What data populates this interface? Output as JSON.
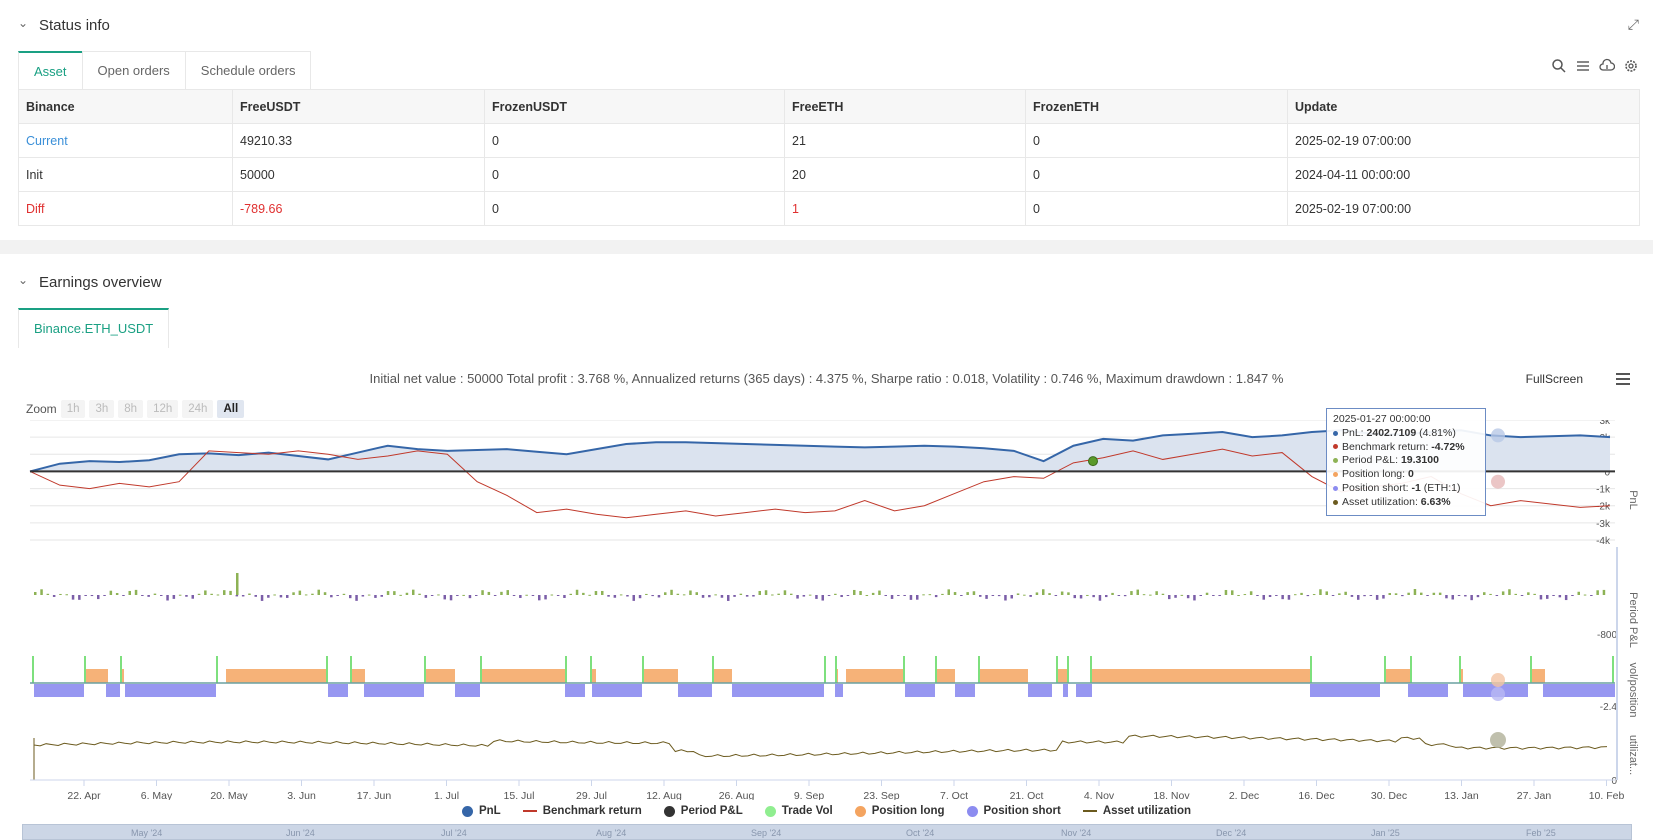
{
  "status_section": {
    "title": "Status info"
  },
  "tabs": [
    {
      "label": "Asset"
    },
    {
      "label": "Open orders"
    },
    {
      "label": "Schedule orders"
    }
  ],
  "table": {
    "headers": [
      "Binance",
      "FreeUSDT",
      "FrozenUSDT",
      "FreeETH",
      "FrozenETH",
      "Update"
    ],
    "rows": [
      [
        "Current",
        "49210.33",
        "0",
        "21",
        "0",
        "2025-02-19 07:00:00"
      ],
      [
        "Init",
        "50000",
        "0",
        "20",
        "0",
        "2024-04-11 00:00:00"
      ],
      [
        "Diff",
        "-789.66",
        "0",
        "1",
        "0",
        "2025-02-19 07:00:00"
      ]
    ]
  },
  "earnings_section": {
    "title": "Earnings overview",
    "tab": "Binance.ETH_USDT"
  },
  "summary": "Initial net value : 50000 Total profit : 3.768 %, Annualized returns (365 days) : 4.375 %, Sharpe ratio : 0.018, Volatility : 0.746 %, Maximum drawdown : 1.847 %",
  "fullscreen_label": "FullScreen",
  "zoom": {
    "label": "Zoom",
    "buttons": [
      "1h",
      "3h",
      "8h",
      "12h",
      "24h",
      "All"
    ],
    "active": "All"
  },
  "tooltip": {
    "date": "2025-01-27 00:00:00",
    "lines": [
      {
        "label": "PnL: ",
        "value": "2402.7109",
        "extra": " (4.81%)",
        "color": "#3566a8"
      },
      {
        "label": "Benchmark return: ",
        "value": "-4.72%",
        "extra": "",
        "color": "#c0392b"
      },
      {
        "label": "Period P&L: ",
        "value": "19.3100",
        "extra": "",
        "color": "#8db255"
      },
      {
        "label": "Position long: ",
        "value": "0",
        "extra": "",
        "color": "#f4a460"
      },
      {
        "label": "Position short: ",
        "value": "-1",
        "extra": " (ETH:1)",
        "color": "#8c8cf0"
      },
      {
        "label": "Asset utilization: ",
        "value": "6.63%",
        "extra": "",
        "color": "#6b5a1e"
      }
    ]
  },
  "legend": [
    {
      "label": "PnL",
      "color": "#3566a8",
      "kind": "dot"
    },
    {
      "label": "Benchmark return",
      "color": "#c0392b",
      "kind": "line"
    },
    {
      "label": "Period P&L",
      "color": "#333333",
      "kind": "dot"
    },
    {
      "label": "Trade Vol",
      "color": "#90ee90",
      "kind": "dot"
    },
    {
      "label": "Position long",
      "color": "#f4a460",
      "kind": "dot"
    },
    {
      "label": "Position short",
      "color": "#8c8cf0",
      "kind": "dot"
    },
    {
      "label": "Asset utilization",
      "color": "#6b5a1e",
      "kind": "line"
    }
  ],
  "chart_data": {
    "type": "line",
    "x_ticks": [
      "22. Apr",
      "6. May",
      "20. May",
      "3. Jun",
      "17. Jun",
      "1. Jul",
      "15. Jul",
      "29. Jul",
      "12. Aug",
      "26. Aug",
      "9. Sep",
      "23. Sep",
      "7. Oct",
      "21. Oct",
      "4. Nov",
      "18. Nov",
      "2. Dec",
      "16. Dec",
      "30. Dec",
      "13. Jan",
      "27. Jan",
      "10. Feb"
    ],
    "pnl_y_ticks": [
      "3k",
      "2k",
      "1k",
      "0",
      "-1k",
      "-2k",
      "-3k",
      "-4k"
    ],
    "pnl_ylim": [
      -4000,
      3000
    ],
    "period_pl_tick": "-800",
    "position_tick": "-2.4",
    "util_tick": "0",
    "axis_titles": [
      "PnL",
      "Period P&L",
      "vol/position",
      "utilizat..."
    ],
    "navigator_labels": [
      "May '24",
      "Jun '24",
      "Jul '24",
      "Aug '24",
      "Sep '24",
      "Oct '24",
      "Nov '24",
      "Dec '24",
      "Jan '25",
      "Feb '25"
    ],
    "series": [
      {
        "name": "PnL",
        "values": [
          0,
          450,
          600,
          550,
          650,
          1000,
          1050,
          950,
          1100,
          900,
          700,
          1100,
          1500,
          1300,
          1200,
          1250,
          1300,
          1150,
          1000,
          1300,
          1600,
          1700,
          1700,
          1650,
          1600,
          1550,
          1500,
          1450,
          1400,
          1450,
          1500,
          1450,
          1350,
          1200,
          600,
          1500,
          1900,
          1800,
          2100,
          2200,
          2300,
          2000,
          2100,
          2300,
          2400,
          2200,
          2150,
          2300,
          2400,
          2100,
          2000,
          2050,
          2100,
          2000
        ]
      },
      {
        "name": "Benchmark return",
        "values": [
          0,
          -800,
          -1000,
          -700,
          -900,
          -600,
          1200,
          1100,
          1000,
          1200,
          1000,
          700,
          900,
          1200,
          1000,
          -600,
          -1400,
          -2400,
          -2200,
          -2500,
          -2700,
          -2500,
          -2300,
          -2600,
          -2400,
          -2200,
          -2400,
          -2300,
          -1700,
          -2300,
          -2000,
          -1300,
          -600,
          -300,
          -400,
          500,
          800,
          1200,
          700,
          1000,
          1300,
          900,
          1100,
          -300,
          -1200,
          -900,
          -700,
          -300,
          -1300,
          -2000,
          -1700,
          -1900,
          -2100,
          -2000
        ]
      }
    ]
  }
}
